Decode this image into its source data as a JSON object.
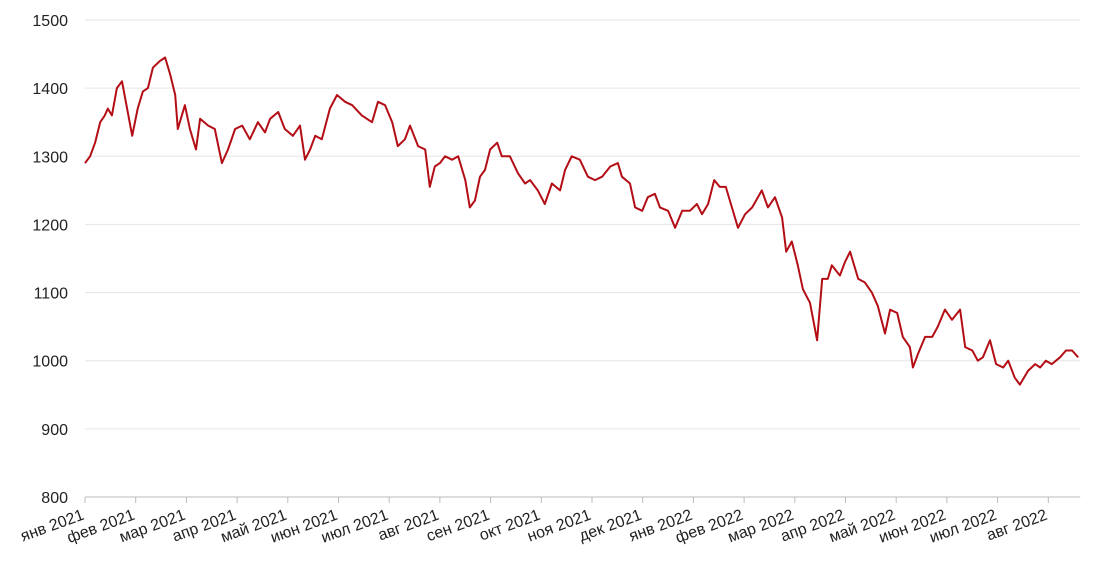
{
  "chart_data": {
    "type": "line",
    "x": [
      0,
      0.1,
      0.2,
      0.3,
      0.39,
      0.45,
      0.53,
      0.63,
      0.73,
      0.83,
      0.93,
      1.04,
      1.14,
      1.24,
      1.34,
      1.48,
      1.58,
      1.68,
      1.78,
      1.83,
      1.97,
      2.07,
      2.19,
      2.27,
      2.43,
      2.56,
      2.7,
      2.82,
      2.96,
      3.1,
      3.25,
      3.41,
      3.55,
      3.65,
      3.81,
      3.94,
      4.1,
      4.24,
      4.34,
      4.44,
      4.54,
      4.67,
      4.83,
      4.97,
      5.13,
      5.27,
      5.46,
      5.66,
      5.78,
      5.92,
      6.06,
      6.17,
      6.31,
      6.41,
      6.57,
      6.71,
      6.8,
      6.9,
      7.0,
      7.1,
      7.24,
      7.36,
      7.5,
      7.59,
      7.69,
      7.79,
      7.89,
      7.99,
      8.13,
      8.22,
      8.38,
      8.54,
      8.68,
      8.78,
      8.93,
      9.07,
      9.21,
      9.37,
      9.47,
      9.6,
      9.76,
      9.92,
      10.06,
      10.2,
      10.36,
      10.51,
      10.59,
      10.75,
      10.85,
      10.99,
      11.1,
      11.24,
      11.34,
      11.5,
      11.64,
      11.78,
      11.93,
      12.07,
      12.17,
      12.29,
      12.41,
      12.52,
      12.64,
      12.76,
      12.88,
      13.02,
      13.16,
      13.35,
      13.47,
      13.61,
      13.75,
      13.83,
      13.94,
      14.06,
      14.16,
      14.3,
      14.44,
      14.54,
      14.65,
      14.73,
      14.89,
      14.99,
      15.09,
      15.25,
      15.38,
      15.52,
      15.64,
      15.78,
      15.88,
      16.02,
      16.13,
      16.27,
      16.33,
      16.43,
      16.57,
      16.71,
      16.82,
      16.96,
      17.1,
      17.26,
      17.36,
      17.5,
      17.61,
      17.71,
      17.85,
      17.97,
      18.11,
      18.21,
      18.34,
      18.44,
      18.6,
      18.74,
      18.84,
      18.95,
      19.07,
      19.23,
      19.35,
      19.47,
      19.59
    ],
    "series": [
      {
        "color": "#b30e16",
        "values": [
          1290,
          1300,
          1320,
          1350,
          1360,
          1370,
          1360,
          1400,
          1410,
          1370,
          1330,
          1370,
          1395,
          1400,
          1430,
          1440,
          1445,
          1420,
          1390,
          1340,
          1375,
          1340,
          1310,
          1355,
          1345,
          1340,
          1290,
          1310,
          1340,
          1345,
          1325,
          1350,
          1335,
          1355,
          1365,
          1340,
          1330,
          1345,
          1295,
          1310,
          1330,
          1325,
          1370,
          1390,
          1380,
          1375,
          1360,
          1350,
          1380,
          1375,
          1350,
          1315,
          1325,
          1345,
          1315,
          1310,
          1255,
          1285,
          1290,
          1300,
          1295,
          1300,
          1265,
          1225,
          1235,
          1270,
          1280,
          1310,
          1320,
          1300,
          1300,
          1275,
          1260,
          1265,
          1250,
          1230,
          1260,
          1250,
          1280,
          1300,
          1295,
          1270,
          1265,
          1270,
          1285,
          1290,
          1270,
          1260,
          1225,
          1220,
          1240,
          1245,
          1225,
          1220,
          1195,
          1220,
          1220,
          1230,
          1215,
          1230,
          1265,
          1255,
          1255,
          1225,
          1195,
          1215,
          1225,
          1250,
          1225,
          1240,
          1210,
          1160,
          1175,
          1140,
          1105,
          1085,
          1030,
          1120,
          1120,
          1140,
          1125,
          1145,
          1160,
          1120,
          1115,
          1100,
          1080,
          1040,
          1075,
          1070,
          1035,
          1020,
          990,
          1010,
          1035,
          1035,
          1050,
          1075,
          1060,
          1075,
          1020,
          1015,
          1000,
          1005,
          1030,
          995,
          990,
          1000,
          975,
          965,
          985,
          995,
          990,
          1000,
          995,
          1005,
          1015,
          1015,
          1005
        ]
      }
    ],
    "xlim": [
      0,
      19.63
    ],
    "xticks": [
      {
        "value": 0,
        "label": "янв 2021"
      },
      {
        "value": 1,
        "label": "фев 2021"
      },
      {
        "value": 2,
        "label": "мар 2021"
      },
      {
        "value": 3,
        "label": "апр 2021"
      },
      {
        "value": 4,
        "label": "май 2021"
      },
      {
        "value": 5,
        "label": "июн 2021"
      },
      {
        "value": 6,
        "label": "июл 2021"
      },
      {
        "value": 7,
        "label": "авг 2021"
      },
      {
        "value": 8,
        "label": "сен 2021"
      },
      {
        "value": 9,
        "label": "окт 2021"
      },
      {
        "value": 10,
        "label": "ноя 2021"
      },
      {
        "value": 11,
        "label": "дек 2021"
      },
      {
        "value": 12,
        "label": "янв 2022"
      },
      {
        "value": 13,
        "label": "фев 2022"
      },
      {
        "value": 14,
        "label": "мар 2022"
      },
      {
        "value": 15,
        "label": "апр 2022"
      },
      {
        "value": 16,
        "label": "май 2022"
      },
      {
        "value": 17,
        "label": "июн 2022"
      },
      {
        "value": 18,
        "label": "июл 2022"
      },
      {
        "value": 19,
        "label": "авг 2022"
      }
    ],
    "ylim": [
      800,
      1500
    ],
    "yticks": [
      800,
      900,
      1000,
      1100,
      1200,
      1300,
      1400,
      1500
    ],
    "grid": true
  }
}
